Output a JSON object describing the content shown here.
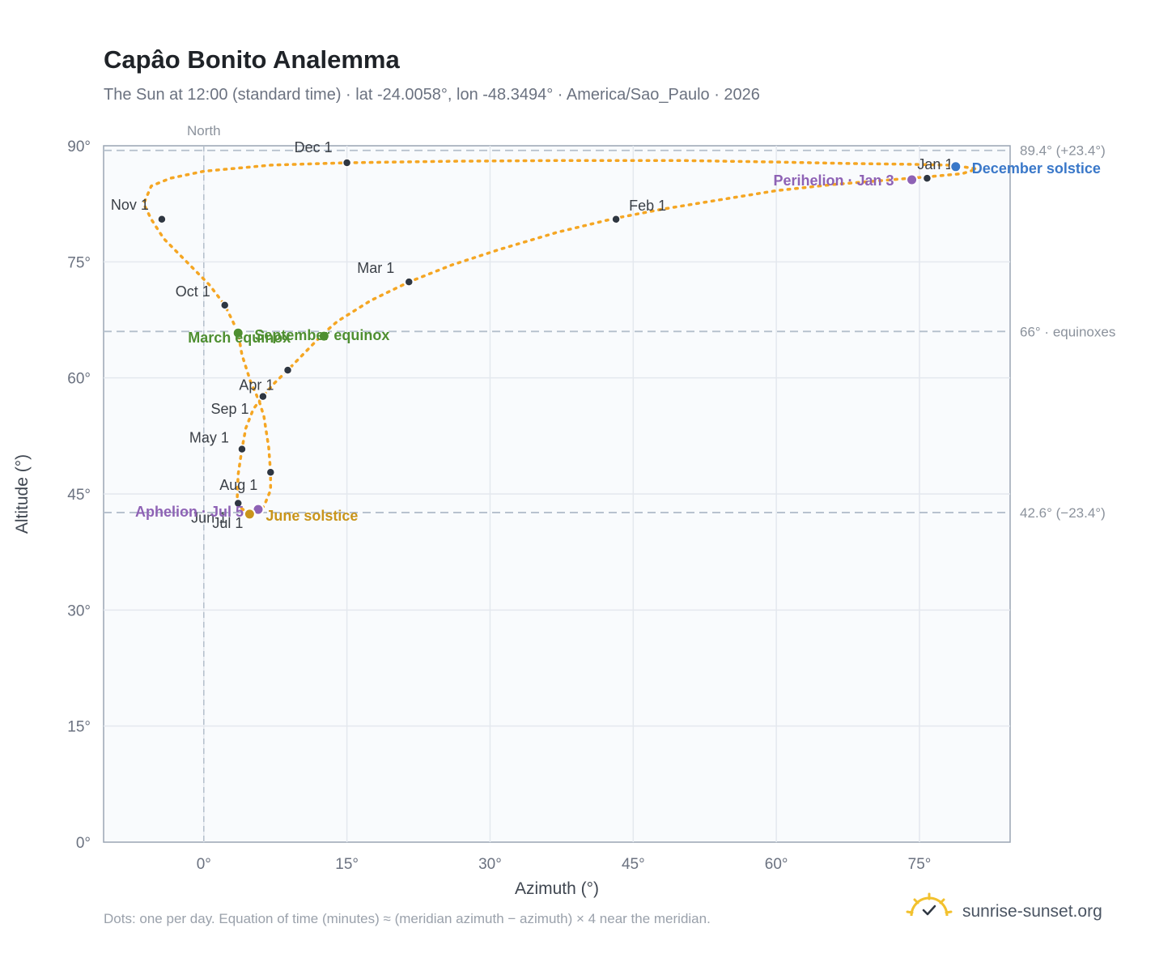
{
  "header": {
    "title": "Capâo Bonito Analemma",
    "subtitle": "The Sun at 12:00 (standard time) · lat -24.0058°, lon -48.3494° · America/Sao_Paulo · 2026"
  },
  "footer": {
    "note": "Dots: one per day. Equation of time (minutes) ≈ (meridian azimuth − azimuth) × 4 near the meridian.",
    "brand": "sunrise-sunset.org"
  },
  "chart_data": {
    "type": "scatter",
    "xlabel": "Azimuth (°)",
    "ylabel": "Altitude (°)",
    "xlim": [
      -10.5,
      84.5
    ],
    "ylim": [
      0,
      90
    ],
    "x_ticks": [
      0,
      15,
      30,
      45,
      60,
      75
    ],
    "x_tick_labels": [
      "0°",
      "15°",
      "30°",
      "45°",
      "60°",
      "75°"
    ],
    "y_ticks": [
      0,
      15,
      30,
      45,
      60,
      75,
      90
    ],
    "y_tick_labels": [
      "0°",
      "15°",
      "30°",
      "45°",
      "60°",
      "75°",
      "90°"
    ],
    "grid": true,
    "meridian": {
      "x": 0,
      "label": "North"
    },
    "reference_lines": [
      {
        "y": 89.4,
        "label": "89.4° (+23.4°)"
      },
      {
        "y": 66,
        "label": "66° · equinoxes"
      },
      {
        "y": 42.6,
        "label": "42.6° (−23.4°)"
      }
    ],
    "series": [
      {
        "role": "daily-path",
        "color": "#f5a623",
        "points": [
          [
            79.0,
            87.4
          ],
          [
            81.0,
            87.0
          ],
          [
            79.5,
            86.4
          ],
          [
            76.0,
            86.0
          ],
          [
            71.0,
            85.5
          ],
          [
            66.0,
            85.0
          ],
          [
            60.0,
            84.2
          ],
          [
            54.0,
            83.0
          ],
          [
            48.0,
            81.8
          ],
          [
            43.0,
            80.6
          ],
          [
            37.0,
            78.8
          ],
          [
            31.0,
            76.6
          ],
          [
            26.0,
            74.6
          ],
          [
            21.5,
            72.4
          ],
          [
            17.5,
            70.0
          ],
          [
            14.0,
            67.3
          ],
          [
            12.6,
            65.8
          ],
          [
            11.0,
            63.8
          ],
          [
            8.8,
            61.0
          ],
          [
            7.3,
            59.2
          ],
          [
            6.2,
            57.6
          ],
          [
            5.2,
            56.0
          ],
          [
            4.4,
            53.5
          ],
          [
            4.0,
            50.8
          ],
          [
            3.6,
            47.5
          ],
          [
            3.5,
            44.5
          ],
          [
            3.6,
            43.5
          ],
          [
            4.5,
            42.6
          ],
          [
            5.5,
            42.6
          ],
          [
            6.3,
            43.4
          ],
          [
            7.0,
            45.5
          ],
          [
            7.0,
            47.8
          ],
          [
            6.8,
            51.0
          ],
          [
            6.3,
            55.0
          ],
          [
            5.8,
            57.0
          ],
          [
            4.9,
            59.5
          ],
          [
            4.0,
            63.0
          ],
          [
            3.6,
            65.8
          ],
          [
            3.0,
            67.4
          ],
          [
            2.2,
            69.4
          ],
          [
            0.6,
            72.0
          ],
          [
            -1.8,
            75.0
          ],
          [
            -4.2,
            78.0
          ],
          [
            -5.5,
            80.5
          ],
          [
            -6.3,
            82.5
          ],
          [
            -5.5,
            84.8
          ],
          [
            -3.5,
            85.8
          ],
          [
            0.0,
            86.7
          ],
          [
            7.0,
            87.5
          ],
          [
            15.0,
            87.8
          ],
          [
            26.0,
            88.0
          ],
          [
            38.0,
            88.1
          ],
          [
            50.0,
            88.1
          ],
          [
            60.0,
            87.9
          ],
          [
            68.0,
            87.7
          ],
          [
            74.0,
            87.6
          ],
          [
            78.0,
            87.5
          ],
          [
            79.0,
            87.4
          ]
        ]
      }
    ],
    "month_markers": [
      {
        "label": "Jan 1",
        "x": 75.8,
        "y": 85.8
      },
      {
        "label": "Feb 1",
        "x": 43.2,
        "y": 80.5
      },
      {
        "label": "Mar 1",
        "x": 21.5,
        "y": 72.4
      },
      {
        "label": "Apr 1",
        "x": 6.2,
        "y": 57.6
      },
      {
        "label": "May 1",
        "x": 4.0,
        "y": 50.8
      },
      {
        "label": "Jun 1",
        "x": 3.6,
        "y": 43.8
      },
      {
        "label": "Jul 1",
        "x": 4.8,
        "y": 42.4
      },
      {
        "label": "Aug 1",
        "x": 7.0,
        "y": 47.8
      },
      {
        "label": "Sep 1",
        "x": 8.8,
        "y": 61.0
      },
      {
        "label": "Oct 1",
        "x": 2.2,
        "y": 69.4
      },
      {
        "label": "Nov 1",
        "x": -4.4,
        "y": 80.5
      },
      {
        "label": "Dec 1",
        "x": 15.0,
        "y": 87.8
      }
    ],
    "events": [
      {
        "label": "December solstice",
        "x": 78.8,
        "y": 87.3,
        "color": "#3a78c9"
      },
      {
        "label": "Perihelion · Jan 3",
        "x": 74.2,
        "y": 85.6,
        "color": "#8e62b5"
      },
      {
        "label": "March equinox",
        "x": 3.6,
        "y": 65.8,
        "color": "#4f8f31"
      },
      {
        "label": "September equinox",
        "x": 12.6,
        "y": 65.4,
        "color": "#4f8f31"
      },
      {
        "label": "Aphelion · Jul 5",
        "x": 5.7,
        "y": 43.0,
        "color": "#8e62b5"
      },
      {
        "label": "June solstice",
        "x": 4.8,
        "y": 42.4,
        "color": "#c9951b"
      }
    ]
  }
}
